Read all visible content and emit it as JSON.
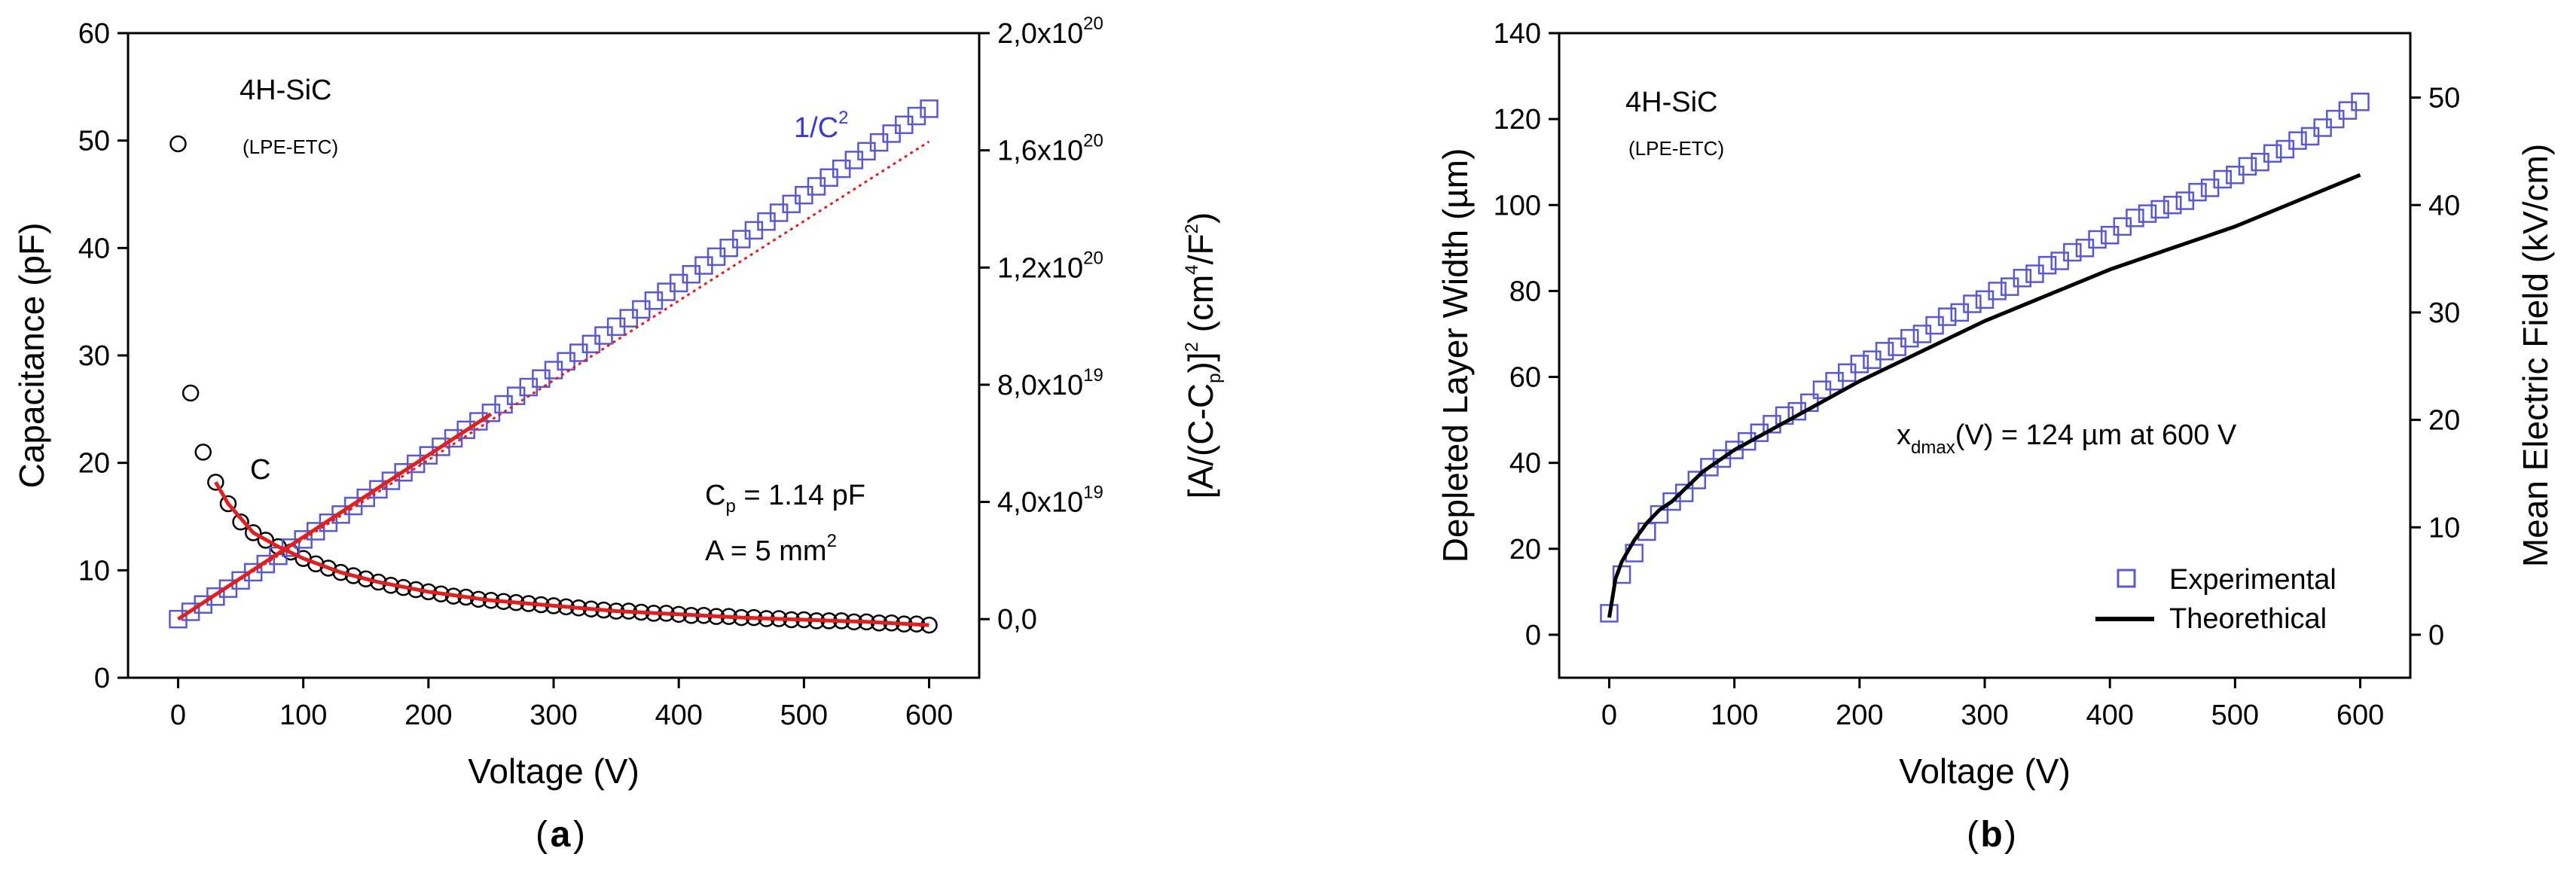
{
  "chart_data": [
    {
      "type": "scatter",
      "panel_label": "a",
      "title": "",
      "xlabel": "Voltage (V)",
      "xlim": [
        -40,
        640
      ],
      "xticks": [
        0,
        100,
        200,
        300,
        400,
        500,
        600
      ],
      "ylabel_left": "Capacitance (pF)",
      "ylim_left": [
        0,
        60
      ],
      "yticks_left": [
        0,
        10,
        20,
        30,
        40,
        50,
        60
      ],
      "ylabel_right": "[A/(C-C_p)]^2 (cm^4/F^2)",
      "ylim_right": [
        -2e+19,
        2e+20
      ],
      "yticks_right": [
        0,
        4e+19,
        8e+19,
        1.2e+20,
        1.6e+20,
        2e+20
      ],
      "yticklabels_right": [
        {
          "mant": "0,0",
          "exp": ""
        },
        {
          "mant": "4,0x10",
          "exp": "19"
        },
        {
          "mant": "8,0x10",
          "exp": "19"
        },
        {
          "mant": "1,2x10",
          "exp": "20"
        },
        {
          "mant": "1,6x10",
          "exp": "20"
        },
        {
          "mant": "2,0x10",
          "exp": "20"
        }
      ],
      "annotations": {
        "material": "4H-SiC",
        "method": "(LPE-ETC)",
        "c_label": "C",
        "inv_label": "1/C",
        "inv_sup": "2",
        "cp_prefix": "C",
        "cp_sub": "p",
        "cp_value": " = 1.14 pF",
        "area_prefix": "A = 5 mm",
        "area_sup": "2"
      },
      "series": [
        {
          "name": "C",
          "axis": "left",
          "marker": "circle",
          "color": "#000000",
          "x": [
            0,
            10,
            20,
            30,
            40,
            50,
            60,
            70,
            80,
            90,
            100,
            110,
            120,
            130,
            140,
            150,
            160,
            170,
            180,
            190,
            200,
            210,
            220,
            230,
            240,
            250,
            260,
            270,
            280,
            290,
            300,
            310,
            320,
            330,
            340,
            350,
            360,
            370,
            380,
            390,
            400,
            410,
            420,
            430,
            440,
            450,
            460,
            470,
            480,
            490,
            500,
            510,
            520,
            530,
            540,
            550,
            560,
            570,
            580,
            590,
            600
          ],
          "y": [
            49.7,
            26.5,
            21.0,
            18.2,
            16.2,
            14.5,
            13.5,
            12.8,
            12.2,
            11.7,
            11.1,
            10.6,
            10.2,
            9.8,
            9.5,
            9.2,
            8.9,
            8.6,
            8.4,
            8.2,
            8.0,
            7.8,
            7.6,
            7.5,
            7.3,
            7.2,
            7.1,
            7.0,
            6.9,
            6.8,
            6.7,
            6.6,
            6.5,
            6.4,
            6.3,
            6.2,
            6.2,
            6.1,
            6.0,
            6.0,
            5.9,
            5.8,
            5.8,
            5.7,
            5.7,
            5.6,
            5.6,
            5.5,
            5.5,
            5.4,
            5.4,
            5.3,
            5.3,
            5.3,
            5.2,
            5.2,
            5.1,
            5.1,
            5.0,
            5.0,
            4.9
          ]
        },
        {
          "name": "1/C^2",
          "axis": "right",
          "marker": "square",
          "color": "#5a5ad0",
          "x": [
            0,
            10,
            20,
            30,
            40,
            50,
            60,
            70,
            80,
            90,
            100,
            110,
            120,
            130,
            140,
            150,
            160,
            170,
            180,
            190,
            200,
            210,
            220,
            230,
            240,
            250,
            260,
            270,
            280,
            290,
            300,
            310,
            320,
            330,
            340,
            350,
            360,
            370,
            380,
            390,
            400,
            410,
            420,
            430,
            440,
            450,
            460,
            470,
            480,
            490,
            500,
            510,
            520,
            530,
            540,
            550,
            560,
            570,
            580,
            590,
            600
          ],
          "y": [
            0,
            2.5e+18,
            5e+18,
            7.7e+18,
            1.04e+19,
            1.32e+19,
            1.6e+19,
            1.88e+19,
            2.16e+19,
            2.44e+19,
            2.72e+19,
            3e+19,
            3.29e+19,
            3.57e+19,
            3.86e+19,
            4.14e+19,
            4.43e+19,
            4.72e+19,
            5.01e+19,
            5.3e+19,
            5.59e+19,
            5.88e+19,
            6.17e+19,
            6.46e+19,
            6.75e+19,
            7.04e+19,
            7.33e+19,
            7.62e+19,
            7.92e+19,
            8.21e+19,
            8.5e+19,
            8.8e+19,
            9.09e+19,
            9.39e+19,
            9.68e+19,
            9.98e+19,
            1.027e+20,
            1.057e+20,
            1.087e+20,
            1.117e+20,
            1.147e+20,
            1.177e+20,
            1.207e+20,
            1.237e+20,
            1.267e+20,
            1.297e+20,
            1.327e+20,
            1.357e+20,
            1.387e+20,
            1.417e+20,
            1.447e+20,
            1.477e+20,
            1.507e+20,
            1.537e+20,
            1.567e+20,
            1.597e+20,
            1.627e+20,
            1.657e+20,
            1.687e+20,
            1.717e+20,
            1.742e+20
          ]
        },
        {
          "name": "1/C^2 fit",
          "axis": "right",
          "style": "dotted-line",
          "color": "#e02020",
          "x": [
            0,
            600
          ],
          "y": [
            0,
            1.63e+20
          ]
        },
        {
          "name": "1/C^2 fit (solid)",
          "axis": "right",
          "style": "line",
          "color": "#e02020",
          "x": [
            0,
            250
          ],
          "y": [
            0,
            7e+19
          ]
        },
        {
          "name": "C fit",
          "axis": "left",
          "style": "line",
          "color": "#e02020",
          "x": [
            30,
            40,
            60,
            80,
            100,
            130,
            160,
            200,
            250,
            300,
            350,
            400,
            450,
            500,
            550,
            600
          ],
          "y": [
            18.2,
            16.2,
            13.5,
            12.2,
            11.1,
            9.8,
            8.9,
            8.0,
            7.2,
            6.7,
            6.2,
            5.9,
            5.6,
            5.4,
            5.2,
            4.9
          ]
        }
      ]
    },
    {
      "type": "scatter",
      "panel_label": "b",
      "title": "",
      "xlabel": "Voltage (V)",
      "xlim": [
        -40,
        640
      ],
      "xticks": [
        0,
        100,
        200,
        300,
        400,
        500,
        600
      ],
      "ylabel_left": "Depleted Layer Width (µm)",
      "ylim_left": [
        -10,
        140
      ],
      "yticks_left": [
        0,
        20,
        40,
        60,
        80,
        100,
        120,
        140
      ],
      "ylabel_right": "Mean Electric Field (kV/cm)",
      "ylim_right": [
        -4,
        56
      ],
      "yticks_right": [
        0,
        10,
        20,
        30,
        40,
        50
      ],
      "annotations": {
        "material": "4H-SiC",
        "method": "(LPE-ETC)",
        "xd_prefix": "x",
        "xd_sub": "dmax",
        "xd_rest": "(V) = 124 µm at 600 V"
      },
      "legend": {
        "position": "bottom-right",
        "entries": [
          "Experimental",
          "Theorethical"
        ]
      },
      "series": [
        {
          "name": "Experimental",
          "axis": "left",
          "marker": "square",
          "color": "#5a5ad0",
          "x": [
            0,
            10,
            20,
            30,
            40,
            50,
            60,
            70,
            80,
            90,
            100,
            110,
            120,
            130,
            140,
            150,
            160,
            170,
            180,
            190,
            200,
            210,
            220,
            230,
            240,
            250,
            260,
            270,
            280,
            290,
            300,
            310,
            320,
            330,
            340,
            350,
            360,
            370,
            380,
            390,
            400,
            410,
            420,
            430,
            440,
            450,
            460,
            470,
            480,
            490,
            500,
            510,
            520,
            530,
            540,
            550,
            560,
            570,
            580,
            590,
            600
          ],
          "y": [
            5,
            14,
            19,
            24,
            28,
            31,
            33,
            36,
            39,
            41,
            43,
            45,
            47,
            49,
            51,
            52,
            54,
            57,
            59,
            61,
            63,
            64,
            66,
            67,
            69,
            70,
            72,
            74,
            75,
            77,
            78,
            80,
            81,
            83,
            84,
            86,
            87,
            89,
            90,
            92,
            93,
            95,
            97,
            98,
            99,
            100,
            101,
            103,
            104,
            106,
            107,
            109,
            110,
            112,
            113,
            115,
            116,
            118,
            120,
            122,
            124
          ]
        },
        {
          "name": "Theorethical",
          "axis": "left",
          "style": "line",
          "color": "#000000",
          "x": [
            0,
            5,
            10,
            20,
            30,
            40,
            50,
            75,
            100,
            125,
            150,
            175,
            200,
            250,
            300,
            350,
            400,
            450,
            500,
            550,
            600
          ],
          "y": [
            4,
            13,
            17,
            22,
            26,
            29,
            31,
            38,
            43,
            47,
            51,
            55,
            59,
            66,
            73,
            79,
            85,
            90,
            95,
            101,
            107
          ]
        }
      ]
    }
  ]
}
